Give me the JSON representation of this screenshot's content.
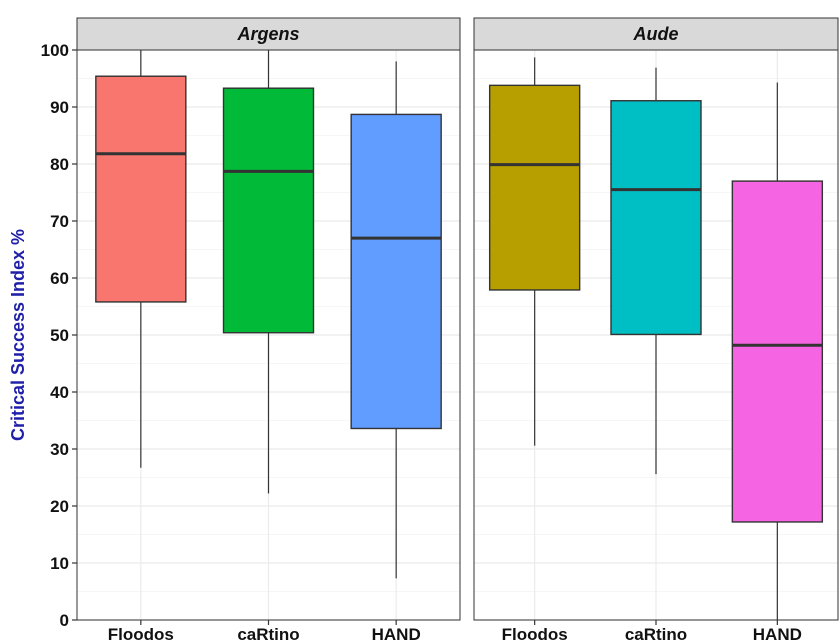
{
  "chart_data": {
    "type": "boxplot",
    "ylabel": "Critical Success Index %",
    "ylim": [
      0,
      100
    ],
    "yticks": [
      0,
      10,
      20,
      30,
      40,
      50,
      60,
      70,
      80,
      90,
      100
    ],
    "grid": true,
    "categories": [
      "Floodos",
      "caRtino",
      "HAND"
    ],
    "panels": [
      {
        "name": "Argens",
        "boxes": [
          {
            "category": "Floodos",
            "color": "#F8766D",
            "whisker_low": 26.7,
            "q1": 55.8,
            "median": 81.8,
            "q3": 95.4,
            "whisker_high": 100
          },
          {
            "category": "caRtino",
            "color": "#00BA38",
            "whisker_low": 22.2,
            "q1": 50.4,
            "median": 78.7,
            "q3": 93.3,
            "whisker_high": 100
          },
          {
            "category": "HAND",
            "color": "#619CFF",
            "whisker_low": 7.3,
            "q1": 33.6,
            "median": 67.0,
            "q3": 88.7,
            "whisker_high": 98.0
          }
        ]
      },
      {
        "name": "Aude",
        "boxes": [
          {
            "category": "Floodos",
            "color": "#B79F00",
            "whisker_low": 30.6,
            "q1": 57.9,
            "median": 79.9,
            "q3": 93.8,
            "whisker_high": 98.7
          },
          {
            "category": "caRtino",
            "color": "#00BFC4",
            "whisker_low": 25.6,
            "q1": 50.1,
            "median": 75.5,
            "q3": 91.1,
            "whisker_high": 96.9
          },
          {
            "category": "HAND",
            "color": "#F564E3",
            "whisker_low": 0,
            "q1": 17.2,
            "median": 48.2,
            "q3": 77.0,
            "whisker_high": 94.3
          }
        ]
      }
    ],
    "colors": {
      "axis_title": "#1F1FA8",
      "strip_fill": "#D9D9D9",
      "grid": "#EBEBEB"
    }
  }
}
